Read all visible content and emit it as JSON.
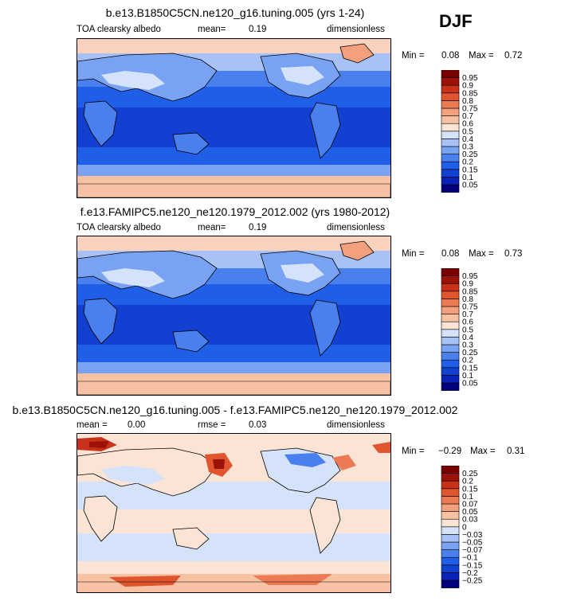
{
  "season": "DJF",
  "panels": [
    {
      "title": "b.e13.B1850C5CN.ne120_g16.tuning.005 (yrs 1-24)",
      "variable": "TOA clearsky albedo",
      "stat1_label": "mean=",
      "stat1_value": "0.19",
      "units": "dimensionless",
      "min_label": "Min =",
      "min_value": "0.08",
      "max_label": "Max =",
      "max_value": "0.72"
    },
    {
      "title": "f.e13.FAMIPC5.ne120_ne120.1979_2012.002 (yrs 1980-2012)",
      "variable": "TOA clearsky albedo",
      "stat1_label": "mean=",
      "stat1_value": "0.19",
      "units": "dimensionless",
      "min_label": "Min =",
      "min_value": "0.08",
      "max_label": "Max =",
      "max_value": "0.73"
    },
    {
      "title": "b.e13.B1850C5CN.ne120_g16.tuning.005 - f.e13.FAMIPC5.ne120_ne120.1979_2012.002",
      "stat1_label": "mean =",
      "stat1_value": "0.00",
      "stat2_label": "rmse =",
      "stat2_value": "0.03",
      "units": "dimensionless",
      "min_label": "Min =",
      "min_value": "−0.29",
      "max_label": "Max =",
      "max_value": "0.31"
    }
  ],
  "chart_data": [
    {
      "type": "heatmap",
      "title": "b.e13.B1850C5CN.ne120_g16.tuning.005 (yrs 1-24)",
      "variable": "TOA clearsky albedo",
      "mean": 0.19,
      "min": 0.08,
      "max": 0.72,
      "colorbar_levels": [
        "0.05",
        "0.1",
        "0.15",
        "0.2",
        "0.25",
        "0.3",
        "0.4",
        "0.5",
        "0.6",
        "0.7",
        "0.75",
        "0.8",
        "0.85",
        "0.9",
        "0.95"
      ],
      "colorbar_colors": [
        "#00007f",
        "#0a22b8",
        "#1240d0",
        "#1f5ee6",
        "#4a80ee",
        "#7aa2f2",
        "#a8c2f6",
        "#d4e2fa",
        "#fbe4d6",
        "#f7c2a4",
        "#f3a07e",
        "#ec7a52",
        "#e0542e",
        "#c8321a",
        "#9a1208",
        "#7a0000"
      ]
    },
    {
      "type": "heatmap",
      "title": "f.e13.FAMIPC5.ne120_ne120.1979_2012.002 (yrs 1980-2012)",
      "variable": "TOA clearsky albedo",
      "mean": 0.19,
      "min": 0.08,
      "max": 0.73,
      "colorbar_levels": [
        "0.05",
        "0.1",
        "0.15",
        "0.2",
        "0.25",
        "0.3",
        "0.4",
        "0.5",
        "0.6",
        "0.7",
        "0.75",
        "0.8",
        "0.85",
        "0.9",
        "0.95"
      ],
      "colorbar_colors": [
        "#00007f",
        "#0a22b8",
        "#1240d0",
        "#1f5ee6",
        "#4a80ee",
        "#7aa2f2",
        "#a8c2f6",
        "#d4e2fa",
        "#fbe4d6",
        "#f7c2a4",
        "#f3a07e",
        "#ec7a52",
        "#e0542e",
        "#c8321a",
        "#9a1208",
        "#7a0000"
      ]
    },
    {
      "type": "heatmap",
      "title": "b.e13.B1850C5CN.ne120_g16.tuning.005 - f.e13.FAMIPC5.ne120_ne120.1979_2012.002",
      "mean": 0.0,
      "rmse": 0.03,
      "min": -0.29,
      "max": 0.31,
      "colorbar_levels": [
        "−0.25",
        "−0.2",
        "−0.15",
        "−0.1",
        "−0.07",
        "−0.05",
        "−0.03",
        "0",
        "0.03",
        "0.05",
        "0.07",
        "0.1",
        "0.15",
        "0.2",
        "0.25"
      ],
      "colorbar_colors": [
        "#00007f",
        "#0a22b8",
        "#1240d0",
        "#1f5ee6",
        "#4a80ee",
        "#7aa2f2",
        "#a8c2f6",
        "#d4e2fa",
        "#fbe4d6",
        "#f7c2a4",
        "#f3a07e",
        "#ec7a52",
        "#e0542e",
        "#c8321a",
        "#9a1208",
        "#7a0000"
      ]
    }
  ]
}
